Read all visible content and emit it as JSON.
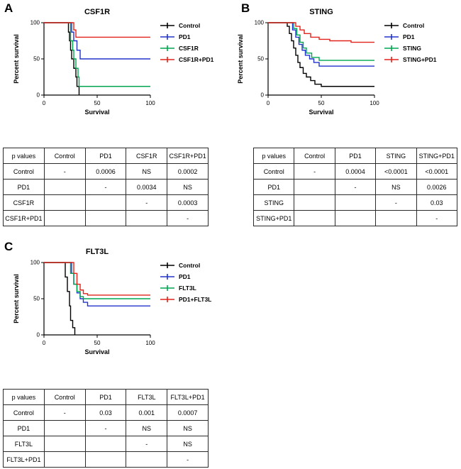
{
  "chart_data": [
    {
      "panel": "A",
      "type": "line",
      "step": true,
      "title": "CSF1R",
      "xlabel": "Survival",
      "ylabel": "Percent survival",
      "xlim": [
        0,
        100
      ],
      "ylim": [
        0,
        100
      ],
      "xticks": [
        0,
        50,
        100
      ],
      "yticks": [
        0,
        50,
        100
      ],
      "legend_position": "right",
      "grid": false,
      "series": [
        {
          "name": "Control",
          "color": "#000000",
          "points": [
            [
              0,
              100
            ],
            [
              21,
              100
            ],
            [
              23,
              87
            ],
            [
              24,
              75
            ],
            [
              25,
              62
            ],
            [
              26,
              50
            ],
            [
              28,
              37
            ],
            [
              30,
              25
            ],
            [
              31,
              12
            ],
            [
              33,
              0
            ]
          ]
        },
        {
          "name": "PD1",
          "color": "#2233cc",
          "points": [
            [
              0,
              100
            ],
            [
              25,
              100
            ],
            [
              26,
              87
            ],
            [
              28,
              75
            ],
            [
              31,
              62
            ],
            [
              34,
              50
            ],
            [
              100,
              50
            ]
          ]
        },
        {
          "name": "CSF1R",
          "color": "#00a550",
          "points": [
            [
              0,
              100
            ],
            [
              24,
              100
            ],
            [
              25,
              75
            ],
            [
              27,
              62
            ],
            [
              28,
              50
            ],
            [
              30,
              37
            ],
            [
              32,
              25
            ],
            [
              33,
              12
            ],
            [
              100,
              12
            ]
          ]
        },
        {
          "name": "CSF1R+PD1",
          "color": "#e2231b",
          "points": [
            [
              0,
              100
            ],
            [
              26,
              100
            ],
            [
              28,
              90
            ],
            [
              30,
              80
            ],
            [
              100,
              80
            ]
          ]
        }
      ]
    },
    {
      "panel": "B",
      "type": "line",
      "step": true,
      "title": "STING",
      "xlabel": "Survival",
      "ylabel": "Percent survival",
      "xlim": [
        0,
        100
      ],
      "ylim": [
        0,
        100
      ],
      "xticks": [
        0,
        50,
        100
      ],
      "yticks": [
        0,
        50,
        100
      ],
      "legend_position": "right",
      "grid": false,
      "series": [
        {
          "name": "Control",
          "color": "#000000",
          "points": [
            [
              0,
              100
            ],
            [
              15,
              100
            ],
            [
              18,
              95
            ],
            [
              20,
              85
            ],
            [
              22,
              75
            ],
            [
              24,
              65
            ],
            [
              26,
              55
            ],
            [
              28,
              45
            ],
            [
              30,
              38
            ],
            [
              33,
              30
            ],
            [
              36,
              25
            ],
            [
              40,
              20
            ],
            [
              44,
              15
            ],
            [
              50,
              12
            ],
            [
              100,
              12
            ]
          ]
        },
        {
          "name": "PD1",
          "color": "#2233cc",
          "points": [
            [
              0,
              100
            ],
            [
              20,
              100
            ],
            [
              23,
              90
            ],
            [
              26,
              80
            ],
            [
              29,
              70
            ],
            [
              32,
              62
            ],
            [
              35,
              55
            ],
            [
              39,
              50
            ],
            [
              43,
              45
            ],
            [
              48,
              40
            ],
            [
              100,
              40
            ]
          ]
        },
        {
          "name": "STING",
          "color": "#00a550",
          "points": [
            [
              0,
              100
            ],
            [
              21,
              100
            ],
            [
              24,
              92
            ],
            [
              27,
              83
            ],
            [
              30,
              73
            ],
            [
              33,
              65
            ],
            [
              36,
              58
            ],
            [
              41,
              52
            ],
            [
              48,
              48
            ],
            [
              100,
              48
            ]
          ]
        },
        {
          "name": "STING+PD1",
          "color": "#e2231b",
          "points": [
            [
              0,
              100
            ],
            [
              23,
              100
            ],
            [
              26,
              95
            ],
            [
              30,
              90
            ],
            [
              34,
              85
            ],
            [
              40,
              80
            ],
            [
              48,
              77
            ],
            [
              58,
              75
            ],
            [
              78,
              73
            ],
            [
              100,
              73
            ]
          ]
        }
      ]
    },
    {
      "panel": "C",
      "type": "line",
      "step": true,
      "title": "FLT3L",
      "xlabel": "Survival",
      "ylabel": "Percent survival",
      "xlim": [
        0,
        100
      ],
      "ylim": [
        0,
        100
      ],
      "xticks": [
        0,
        50,
        100
      ],
      "yticks": [
        0,
        50,
        100
      ],
      "legend_position": "right",
      "grid": false,
      "series": [
        {
          "name": "Control",
          "color": "#000000",
          "points": [
            [
              0,
              100
            ],
            [
              18,
              100
            ],
            [
              20,
              80
            ],
            [
              22,
              60
            ],
            [
              24,
              40
            ],
            [
              25,
              20
            ],
            [
              27,
              10
            ],
            [
              29,
              0
            ]
          ]
        },
        {
          "name": "PD1",
          "color": "#2233cc",
          "points": [
            [
              0,
              100
            ],
            [
              24,
              100
            ],
            [
              26,
              85
            ],
            [
              28,
              70
            ],
            [
              31,
              58
            ],
            [
              34,
              50
            ],
            [
              37,
              45
            ],
            [
              41,
              40
            ],
            [
              100,
              40
            ]
          ]
        },
        {
          "name": "FLT3L",
          "color": "#00a550",
          "points": [
            [
              0,
              100
            ],
            [
              23,
              100
            ],
            [
              25,
              85
            ],
            [
              28,
              70
            ],
            [
              31,
              60
            ],
            [
              34,
              53
            ],
            [
              37,
              50
            ],
            [
              100,
              50
            ]
          ]
        },
        {
          "name": "PD1+FLT3L",
          "color": "#e2231b",
          "points": [
            [
              0,
              100
            ],
            [
              26,
              100
            ],
            [
              28,
              85
            ],
            [
              31,
              70
            ],
            [
              34,
              62
            ],
            [
              37,
              57
            ],
            [
              41,
              55
            ],
            [
              100,
              55
            ]
          ]
        }
      ]
    }
  ],
  "tables": [
    {
      "panel": "A",
      "header": [
        "p values",
        "Control",
        "PD1",
        "CSF1R",
        "CSF1R+PD1"
      ],
      "rows": [
        {
          "label": "Control",
          "cells": [
            "-",
            "0.0006",
            "NS",
            "0.0002"
          ]
        },
        {
          "label": "PD1",
          "cells": [
            "",
            "-",
            "0.0034",
            "NS"
          ]
        },
        {
          "label": "CSF1R",
          "cells": [
            "",
            "",
            "-",
            "0.0003"
          ]
        },
        {
          "label": "CSF1R+PD1",
          "cells": [
            "",
            "",
            "",
            "-"
          ]
        }
      ]
    },
    {
      "panel": "B",
      "header": [
        "p values",
        "Control",
        "PD1",
        "STING",
        "STING+PD1"
      ],
      "rows": [
        {
          "label": "Control",
          "cells": [
            "-",
            "0.0004",
            "<0.0001",
            "<0.0001"
          ]
        },
        {
          "label": "PD1",
          "cells": [
            "",
            "-",
            "NS",
            "0.0026"
          ]
        },
        {
          "label": "STING",
          "cells": [
            "",
            "",
            "-",
            "0.03"
          ]
        },
        {
          "label": "STING+PD1",
          "cells": [
            "",
            "",
            "",
            "-"
          ]
        }
      ]
    },
    {
      "panel": "C",
      "header": [
        "p values",
        "Control",
        "PD1",
        "FLT3L",
        "FLT3L+PD1"
      ],
      "rows": [
        {
          "label": "Control",
          "cells": [
            "-",
            "0.03",
            "0.001",
            "0.0007"
          ]
        },
        {
          "label": "PD1",
          "cells": [
            "",
            "-",
            "NS",
            "NS"
          ]
        },
        {
          "label": "FLT3L",
          "cells": [
            "",
            "",
            "-",
            "NS"
          ]
        },
        {
          "label": "FLT3L+PD1",
          "cells": [
            "",
            "",
            "",
            "-"
          ]
        }
      ]
    }
  ]
}
